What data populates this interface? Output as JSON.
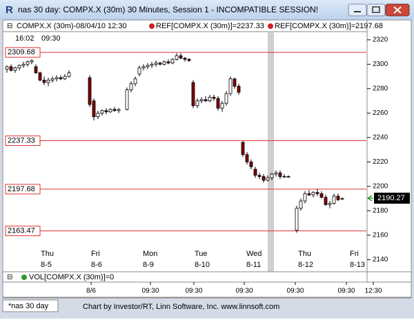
{
  "window": {
    "title": "nas 30 day: COMPX.X (30m) 30 Minutes, Session 1 - INCOMPATIBLE SESSION!",
    "icon": "R"
  },
  "chart_data": {
    "type": "candlestick",
    "header": [
      "COMPX.X (30m)-08/04/10 12:30",
      "REF[COMPX.X (30m)]=2237.33",
      "REF[COMPX.X (30m)]=2197.68"
    ],
    "time_row": [
      "16:02",
      "09:30"
    ],
    "categories": [
      null,
      null,
      null,
      null,
      null,
      null,
      null,
      null,
      null,
      null,
      null,
      null,
      null,
      null,
      null,
      null,
      null,
      null,
      null,
      null,
      null,
      null,
      null,
      null,
      null,
      null,
      null,
      null,
      null,
      null,
      null,
      null,
      null,
      null,
      null,
      null,
      null,
      null,
      null,
      null,
      null,
      null,
      null,
      null,
      null,
      null,
      null,
      null,
      null,
      null,
      null,
      null,
      null,
      null,
      null,
      null,
      null,
      null,
      null,
      null,
      null,
      null,
      null,
      null,
      null,
      null,
      null,
      null,
      null,
      null,
      null,
      null,
      null,
      null,
      null,
      null,
      null,
      null,
      null,
      null,
      null,
      null
    ],
    "open": [
      2296,
      2298,
      2295,
      2297,
      2299,
      2300,
      2302,
      2298,
      2293,
      2287,
      2285,
      2287,
      2288,
      2289,
      2288,
      2290,
      null,
      null,
      null,
      null,
      2289,
      2270,
      2257,
      2260,
      2262,
      2261,
      2263,
      2262,
      null,
      2263,
      2279,
      2284,
      2292,
      2297,
      2298,
      2299,
      2300,
      2301,
      2300,
      2302,
      2301,
      2304,
      2307,
      2305,
      2304,
      2285,
      2266,
      2270,
      2271,
      2270,
      2273,
      2272,
      2264,
      2268,
      2276,
      2288,
      2282,
      2236,
      2226,
      2220,
      2214,
      2209,
      2208,
      2205,
      2207,
      2210,
      2211,
      2208,
      2208,
      null,
      2164,
      2182,
      2188,
      2194,
      2193,
      2195,
      2194,
      2191,
      2185,
      2186,
      2192,
      2190
    ],
    "high": [
      2299,
      2300,
      2298,
      2300,
      2302,
      2303,
      2304,
      2300,
      2294,
      2290,
      2289,
      2290,
      2291,
      2291,
      2292,
      2295,
      null,
      null,
      null,
      null,
      2291,
      2272,
      2262,
      2263,
      2264,
      2264,
      2265,
      2264,
      null,
      2281,
      2286,
      2290,
      2299,
      2300,
      2301,
      2302,
      2303,
      2302,
      2303,
      2304,
      2305,
      2309,
      2309,
      2306,
      2305,
      2287,
      2272,
      2273,
      2274,
      2275,
      2275,
      2274,
      2270,
      2278,
      2290,
      2289,
      2284,
      2237,
      2228,
      2222,
      2216,
      2211,
      2210,
      2209,
      2211,
      2213,
      2213,
      2210,
      2209,
      null,
      2184,
      2190,
      2196,
      2197,
      2196,
      2198,
      2196,
      2193,
      2188,
      2194,
      2194,
      2191
    ],
    "low": [
      2293,
      2294,
      2293,
      2295,
      2297,
      2298,
      2300,
      2292,
      2286,
      2283,
      2282,
      2285,
      2286,
      2287,
      2287,
      2289,
      null,
      null,
      null,
      null,
      2265,
      2254,
      2255,
      2258,
      2259,
      2260,
      2261,
      2260,
      null,
      2262,
      2277,
      2282,
      2290,
      2295,
      2296,
      2297,
      2298,
      2299,
      2299,
      2300,
      2300,
      2303,
      2304,
      2302,
      2302,
      2264,
      2264,
      2268,
      2269,
      2269,
      2270,
      2262,
      2261,
      2266,
      2274,
      2280,
      2275,
      2224,
      2218,
      2214,
      2207,
      2206,
      2203,
      2204,
      2205,
      2208,
      2206,
      2207,
      2207,
      null,
      2162,
      2180,
      2186,
      2192,
      2191,
      2192,
      2190,
      2184,
      2182,
      2185,
      2188,
      2189
    ],
    "close": [
      2298,
      2295,
      2297,
      2299,
      2300,
      2302,
      2303,
      2293,
      2287,
      2285,
      2287,
      2288,
      2289,
      2288,
      2290,
      2293,
      null,
      null,
      null,
      null,
      2267,
      2257,
      2260,
      2262,
      2261,
      2263,
      2262,
      2263,
      null,
      2279,
      2284,
      2288,
      2297,
      2298,
      2299,
      2300,
      2301,
      2300,
      2302,
      2301,
      2304,
      2307,
      2305,
      2304,
      2303,
      2266,
      2270,
      2271,
      2270,
      2273,
      2272,
      2264,
      2268,
      2276,
      2288,
      2282,
      2277,
      2226,
      2220,
      2216,
      2209,
      2208,
      2205,
      2207,
      2210,
      2211,
      2208,
      2208,
      2208,
      null,
      2182,
      2188,
      2194,
      2193,
      2195,
      2194,
      2191,
      2185,
      2186,
      2192,
      2189,
      2190
    ],
    "up_color": "#ffffff",
    "down_color": "#800000",
    "ref_lines": [
      2309.68,
      2237.33,
      2197.68,
      2163.47
    ],
    "ref_color": "#e03030",
    "last_value": 2190.27,
    "ylim": [
      2130,
      2325
    ],
    "yticks": [
      2140,
      2160,
      2180,
      2200,
      2220,
      2240,
      2260,
      2280,
      2300,
      2320
    ],
    "day_labels": [
      {
        "day": "Thu",
        "date": "8-5"
      },
      {
        "day": "Fri",
        "date": "8-6"
      },
      {
        "day": "Mon",
        "date": "8-9"
      },
      {
        "day": "Tue",
        "date": "8-10"
      },
      {
        "day": "Wed",
        "date": "8-11"
      },
      {
        "day": "Thu",
        "date": "8-12"
      },
      {
        "day": "Fri",
        "date": "8-13"
      }
    ],
    "volume_label": "VOL[COMPX.X (30m)]=0",
    "time_axis_labels": [
      "8/6",
      "09:30",
      "09:30",
      "09:30",
      "09:30",
      "09:30",
      "12:30"
    ]
  },
  "footer": {
    "tab": "*nas 30 day",
    "credit": "Chart by Investor/RT, Linn Software, Inc. www.linnsoft.com"
  }
}
